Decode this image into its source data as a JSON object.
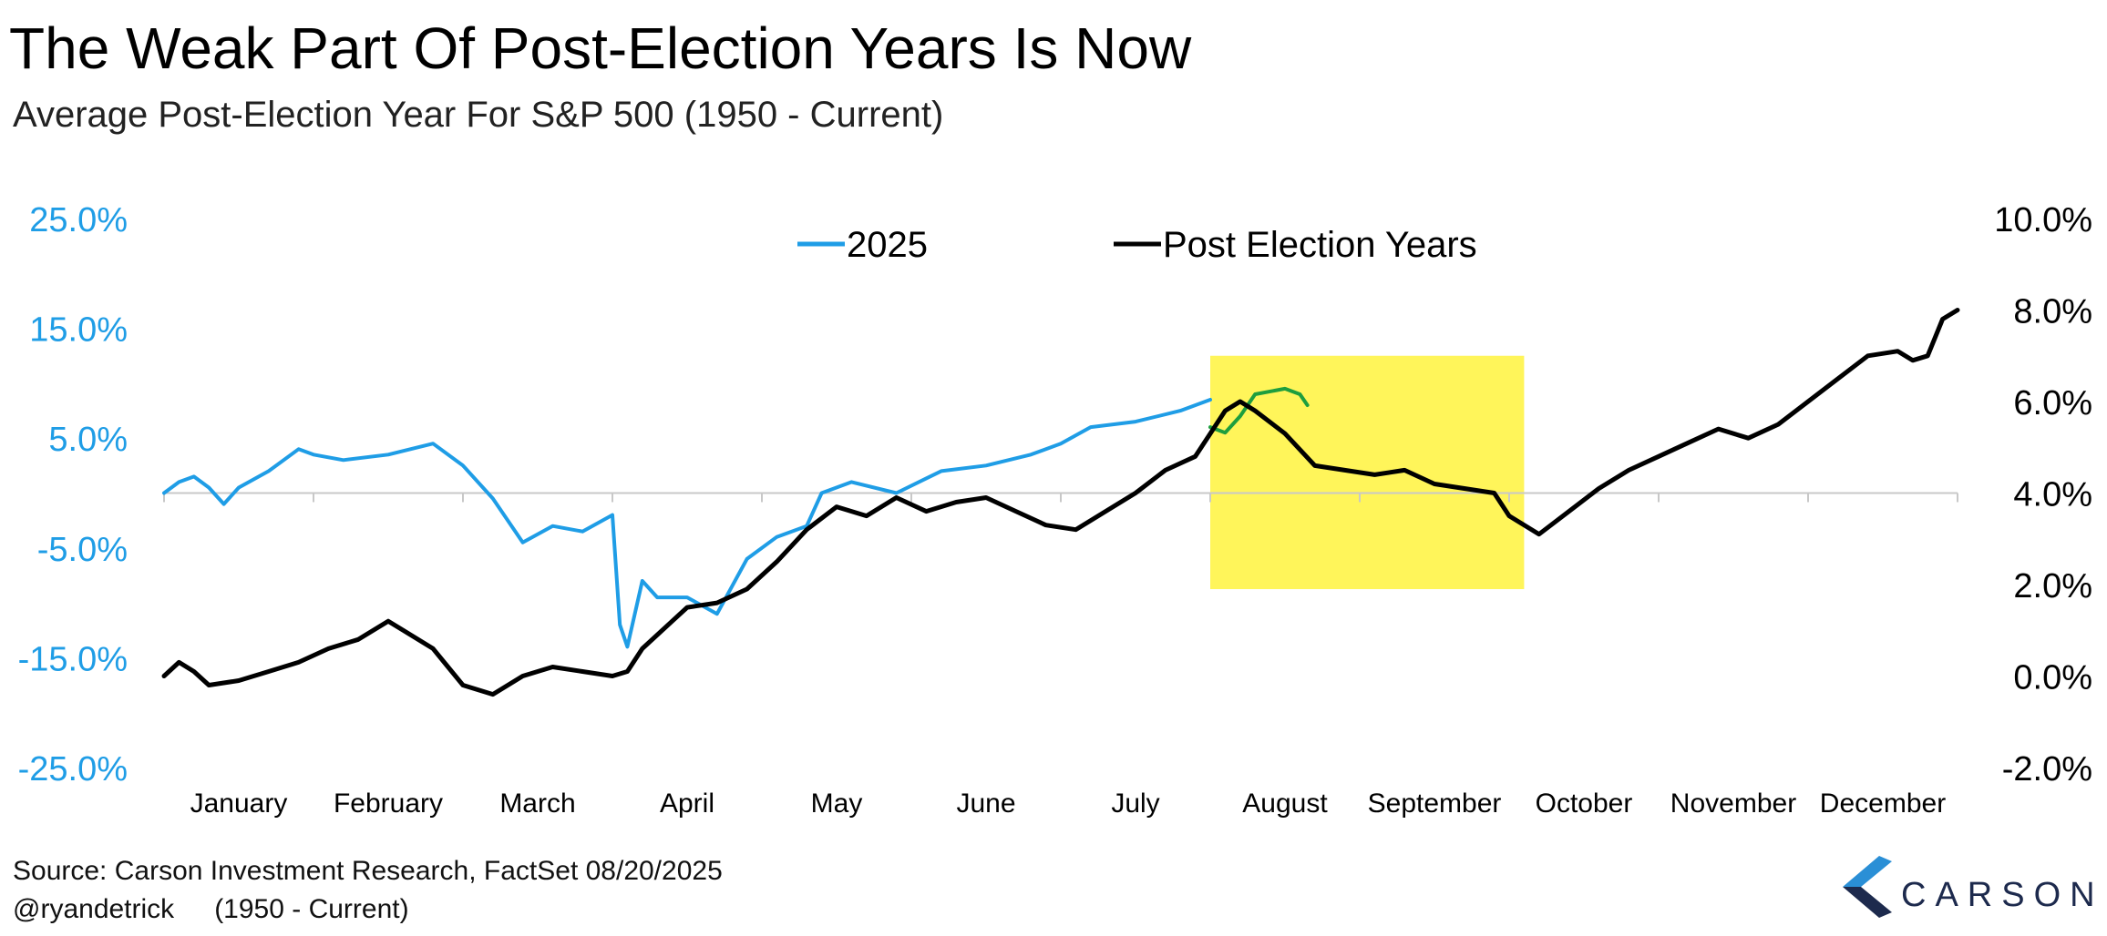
{
  "header": {
    "title": "The Weak Part Of Post-Election Years Is Now",
    "subtitle": "Average Post-Election Year For S&P 500 (1950 - Current)"
  },
  "footer": {
    "source": "Source: Carson Investment Research, FactSet 08/20/2025",
    "handle": "@ryandetrick",
    "handle_range": "(1950 - Current)",
    "brand": "CARSON"
  },
  "colors": {
    "series_2025": "#1f9de6",
    "series_2025_recent": "#1e9e3e",
    "series_post_election": "#000000",
    "highlight": "#fff55a",
    "left_axis_text": "#1f9de6",
    "brand_navy": "#1d2a4d",
    "brand_blue": "#2a8fd6"
  },
  "icons": {
    "brand_logo": "carson-chevron-logo"
  },
  "chart_data": {
    "type": "line",
    "legend": {
      "placement": "top-center",
      "entries": [
        "2025",
        "Post Election Years"
      ]
    },
    "x_axis": {
      "categories": [
        "January",
        "February",
        "March",
        "April",
        "May",
        "June",
        "July",
        "August",
        "September",
        "October",
        "November",
        "December"
      ],
      "range_months": [
        0,
        12
      ]
    },
    "y_left": {
      "ticks": [
        "25.0%",
        "15.0%",
        "5.0%",
        "-5.0%",
        "-15.0%",
        "-25.0%"
      ],
      "range": [
        -25,
        25
      ]
    },
    "y_right": {
      "ticks": [
        "10.0%",
        "8.0%",
        "6.0%",
        "4.0%",
        "2.0%",
        "0.0%",
        "-2.0%"
      ],
      "range": [
        -2,
        10
      ]
    },
    "highlight": {
      "x_range_months": [
        7.0,
        9.1
      ],
      "y_right_range": [
        1.9,
        7.0
      ]
    },
    "series": [
      {
        "name": "2025",
        "axis": "left",
        "x": [
          0.0,
          0.1,
          0.2,
          0.3,
          0.4,
          0.5,
          0.7,
          0.9,
          1.0,
          1.2,
          1.5,
          1.8,
          2.0,
          2.2,
          2.4,
          2.6,
          2.8,
          3.0,
          3.05,
          3.1,
          3.2,
          3.3,
          3.5,
          3.7,
          3.9,
          4.1,
          4.3,
          4.4,
          4.6,
          4.9,
          5.2,
          5.5,
          5.8,
          6.0,
          6.2,
          6.5,
          6.8,
          7.0
        ],
        "y": [
          0.0,
          1.0,
          1.5,
          0.5,
          -1.0,
          0.5,
          2.0,
          4.0,
          3.5,
          3.0,
          3.5,
          4.5,
          2.5,
          -0.5,
          -4.5,
          -3.0,
          -3.5,
          -2.0,
          -12.0,
          -14.0,
          -8.0,
          -9.5,
          -9.5,
          -11.0,
          -6.0,
          -4.0,
          -3.0,
          0.0,
          1.0,
          0.0,
          2.0,
          2.5,
          3.5,
          4.5,
          6.0,
          6.5,
          7.5,
          8.5
        ]
      },
      {
        "name": "2025 (recent)",
        "axis": "left",
        "x": [
          7.0,
          7.1,
          7.2,
          7.3,
          7.5,
          7.6,
          7.65
        ],
        "y": [
          6.0,
          5.5,
          7.0,
          9.0,
          9.5,
          9.0,
          8.0
        ]
      },
      {
        "name": "Post Election Years",
        "axis": "right",
        "x": [
          0.0,
          0.1,
          0.2,
          0.3,
          0.5,
          0.7,
          0.9,
          1.1,
          1.3,
          1.4,
          1.5,
          1.6,
          1.8,
          1.9,
          2.0,
          2.2,
          2.4,
          2.6,
          2.8,
          3.0,
          3.1,
          3.2,
          3.4,
          3.5,
          3.7,
          3.9,
          4.1,
          4.3,
          4.5,
          4.7,
          4.9,
          5.1,
          5.3,
          5.5,
          5.7,
          5.9,
          6.1,
          6.3,
          6.5,
          6.7,
          6.9,
          7.0,
          7.1,
          7.2,
          7.3,
          7.5,
          7.7,
          7.9,
          8.1,
          8.3,
          8.5,
          8.7,
          8.9,
          9.0,
          9.2,
          9.4,
          9.6,
          9.8,
          10.0,
          10.2,
          10.4,
          10.6,
          10.8,
          11.0,
          11.2,
          11.4,
          11.6,
          11.7,
          11.8,
          11.9,
          12.0
        ],
        "y": [
          0.0,
          0.3,
          0.1,
          -0.2,
          -0.1,
          0.1,
          0.3,
          0.6,
          0.8,
          1.0,
          1.2,
          1.0,
          0.6,
          0.2,
          -0.2,
          -0.4,
          0.0,
          0.2,
          0.1,
          0.0,
          0.1,
          0.6,
          1.2,
          1.5,
          1.6,
          1.9,
          2.5,
          3.2,
          3.7,
          3.5,
          3.9,
          3.6,
          3.8,
          3.9,
          3.6,
          3.3,
          3.2,
          3.6,
          4.0,
          4.5,
          4.8,
          5.3,
          5.8,
          6.0,
          5.8,
          5.3,
          4.6,
          4.5,
          4.4,
          4.5,
          4.2,
          4.1,
          4.0,
          3.5,
          3.1,
          3.6,
          4.1,
          4.5,
          4.8,
          5.1,
          5.4,
          5.2,
          5.5,
          6.0,
          6.5,
          7.0,
          7.1,
          6.9,
          7.0,
          7.8,
          8.0
        ]
      }
    ]
  }
}
